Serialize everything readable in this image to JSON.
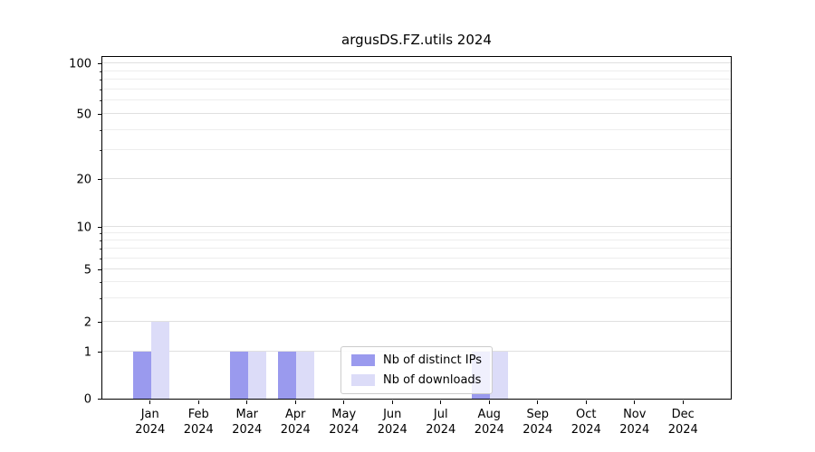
{
  "chart_data": {
    "type": "bar",
    "title": "argusDS.FZ.utils 2024",
    "categories": [
      "Jan",
      "Feb",
      "Mar",
      "Apr",
      "May",
      "Jun",
      "Jul",
      "Aug",
      "Sep",
      "Oct",
      "Nov",
      "Dec"
    ],
    "year_label": "2024",
    "series": [
      {
        "name": "Nb of distinct IPs",
        "color": "#9a9aee",
        "values": [
          1,
          0,
          1,
          1,
          0,
          0,
          0,
          1,
          0,
          0,
          0,
          0
        ]
      },
      {
        "name": "Nb of downloads",
        "color": "#dcdcf8",
        "values": [
          2,
          0,
          1,
          1,
          0,
          0,
          0,
          1,
          0,
          0,
          0,
          0
        ]
      }
    ],
    "yaxis": {
      "scale": "log-above-1",
      "ticks": [
        {
          "v": 0,
          "f": 0.0,
          "label": "0"
        },
        {
          "v": 1,
          "f": 0.137,
          "label": "1"
        },
        {
          "v": 2,
          "f": 0.224,
          "label": "2"
        },
        {
          "v": 5,
          "f": 0.376,
          "label": "5"
        },
        {
          "v": 10,
          "f": 0.5,
          "label": "10"
        },
        {
          "v": 20,
          "f": 0.639,
          "label": "20"
        },
        {
          "v": 50,
          "f": 0.829,
          "label": "50"
        },
        {
          "v": 100,
          "f": 0.976,
          "label": "100"
        }
      ],
      "minor_values": [
        3,
        4,
        6,
        7,
        8,
        9,
        30,
        40,
        60,
        70,
        80,
        90
      ]
    },
    "grid": "horizontal",
    "legend_position": "bottom-center",
    "colors": {
      "axis": "#000000",
      "grid_major": "#e0e0e0",
      "grid_minor": "#ededed",
      "background": "#ffffff"
    }
  }
}
